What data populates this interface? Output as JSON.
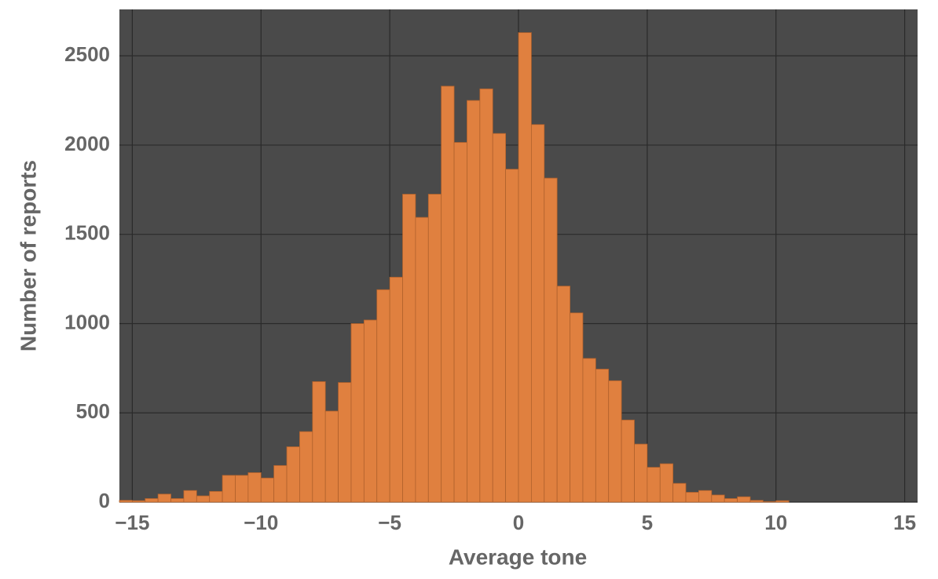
{
  "chart_data": {
    "type": "histogram",
    "x_label": "Average tone",
    "y_label": "Number of reports",
    "bins": [
      -15.5,
      -15,
      -14.5,
      -14,
      -13.5,
      -13,
      -12.5,
      -12,
      -11.5,
      -11,
      -10.5,
      -10,
      -9.5,
      -9,
      -8.5,
      -8,
      -7.5,
      -7,
      -6.5,
      -6,
      -5.5,
      -5,
      -4.5,
      -4,
      -3.5,
      -3,
      -2.5,
      -2,
      -1.5,
      -1,
      -0.5,
      0,
      0.5,
      1,
      1.5,
      2,
      2.5,
      3,
      3.5,
      4,
      4.5,
      5,
      5.5,
      6,
      6.5,
      7,
      7.5,
      8,
      8.5,
      9,
      9.5,
      10,
      10.5
    ],
    "values": [
      10,
      8,
      20,
      45,
      20,
      65,
      35,
      60,
      150,
      150,
      165,
      135,
      205,
      310,
      395,
      675,
      510,
      670,
      1000,
      1020,
      1190,
      1260,
      1725,
      1595,
      1725,
      2330,
      2015,
      2250,
      2315,
      2065,
      1865,
      2630,
      2115,
      1815,
      1210,
      1060,
      805,
      745,
      680,
      460,
      325,
      195,
      215,
      105,
      55,
      65,
      40,
      20,
      30,
      10,
      3,
      8
    ],
    "color": "#e0803f",
    "background": "#4a4a4a",
    "grid": true,
    "xlim": [
      -15.5,
      15.5
    ],
    "xticks": [
      {
        "value": -15,
        "label": "−15"
      },
      {
        "value": -10,
        "label": "−10"
      },
      {
        "value": -5,
        "label": "−5"
      },
      0,
      5,
      10,
      15
    ],
    "ylim": [
      0,
      2760
    ],
    "yticks": [
      0,
      500,
      1000,
      1500,
      2000,
      2500
    ]
  }
}
